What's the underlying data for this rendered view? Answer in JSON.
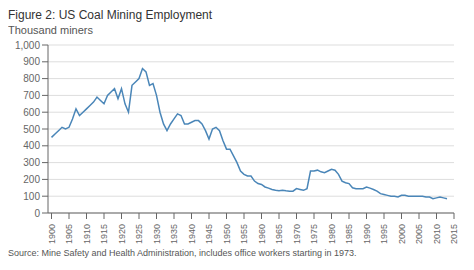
{
  "chart_data": {
    "type": "line",
    "title": "Figure 2: US Coal Mining Employment",
    "subtitle": "Thousand miners",
    "annotation": "Source: Mine Safety and Health Administration, includes office workers starting in 1973.",
    "color": "#4a86b8",
    "grid": true,
    "xlim": [
      1899,
      2015
    ],
    "xticks": [
      1900,
      1905,
      1910,
      1915,
      1920,
      1925,
      1930,
      1935,
      1940,
      1945,
      1950,
      1955,
      1960,
      1965,
      1970,
      1975,
      1980,
      1985,
      1990,
      1995,
      2000,
      2005,
      2010,
      2015
    ],
    "ylim": [
      0,
      1000
    ],
    "yticks": [
      0,
      100,
      200,
      300,
      400,
      500,
      600,
      700,
      800,
      900,
      {
        "value": 1000,
        "label": "1,000"
      }
    ],
    "x": [
      1900,
      1901,
      1902,
      1903,
      1904,
      1905,
      1906,
      1907,
      1908,
      1909,
      1910,
      1911,
      1912,
      1913,
      1914,
      1915,
      1916,
      1917,
      1918,
      1919,
      1920,
      1921,
      1922,
      1923,
      1924,
      1925,
      1926,
      1927,
      1928,
      1929,
      1930,
      1931,
      1932,
      1933,
      1934,
      1935,
      1936,
      1937,
      1938,
      1939,
      1940,
      1941,
      1942,
      1943,
      1944,
      1945,
      1946,
      1947,
      1948,
      1949,
      1950,
      1951,
      1952,
      1953,
      1954,
      1955,
      1956,
      1957,
      1958,
      1959,
      1960,
      1961,
      1962,
      1963,
      1964,
      1965,
      1966,
      1967,
      1968,
      1969,
      1970,
      1971,
      1972,
      1973,
      1974,
      1975,
      1976,
      1977,
      1978,
      1979,
      1980,
      1981,
      1982,
      1983,
      1984,
      1985,
      1986,
      1987,
      1988,
      1989,
      1990,
      1991,
      1992,
      1993,
      1994,
      1995,
      1996,
      1997,
      1998,
      1999,
      2000,
      2001,
      2002,
      2003,
      2004,
      2005,
      2006,
      2007,
      2008,
      2009,
      2010,
      2011,
      2012,
      2013
    ],
    "values": [
      450,
      470,
      490,
      510,
      500,
      510,
      560,
      620,
      580,
      600,
      620,
      640,
      660,
      690,
      670,
      650,
      700,
      720,
      740,
      680,
      740,
      650,
      600,
      760,
      780,
      800,
      860,
      840,
      760,
      770,
      700,
      600,
      530,
      490,
      530,
      560,
      590,
      580,
      530,
      530,
      540,
      550,
      550,
      530,
      490,
      440,
      500,
      510,
      490,
      430,
      380,
      380,
      340,
      300,
      250,
      230,
      220,
      220,
      190,
      175,
      170,
      155,
      148,
      140,
      135,
      133,
      135,
      132,
      130,
      130,
      145,
      140,
      135,
      145,
      250,
      250,
      255,
      245,
      240,
      250,
      260,
      255,
      230,
      190,
      180,
      175,
      150,
      145,
      145,
      145,
      155,
      148,
      140,
      130,
      115,
      110,
      105,
      100,
      100,
      95,
      105,
      105,
      100,
      100,
      100,
      100,
      100,
      95,
      95,
      85,
      90,
      95,
      90,
      85
    ]
  }
}
